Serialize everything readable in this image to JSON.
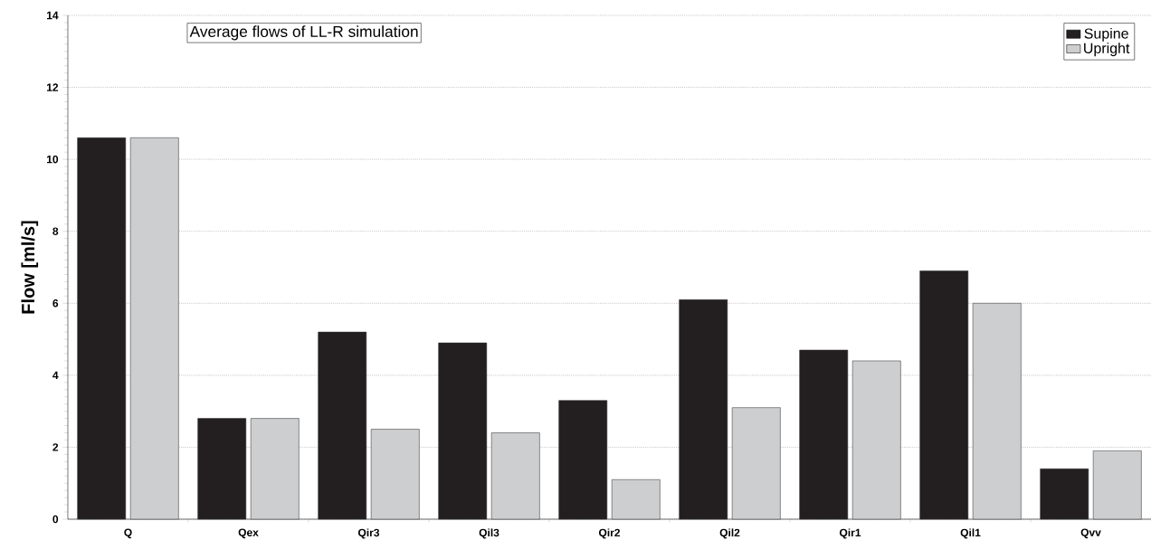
{
  "chart_data": {
    "type": "bar",
    "title": "Average flows of LL-R simulation",
    "ylabel": "Flow [ml/s]",
    "categories": [
      "Q",
      "Qex",
      "Qir3",
      "Qil3",
      "Qir2",
      "Qil2",
      "Qir1",
      "Qil1",
      "Qvv"
    ],
    "series": [
      {
        "name": "Supine",
        "color": "#231f20",
        "values": [
          10.6,
          2.8,
          5.2,
          4.9,
          3.3,
          6.1,
          4.7,
          6.9,
          1.4
        ]
      },
      {
        "name": "Upright",
        "color": "#cdced0",
        "values": [
          10.6,
          2.8,
          2.5,
          2.4,
          1.1,
          3.1,
          4.4,
          6.0,
          1.9
        ]
      }
    ],
    "ylim": [
      0,
      14
    ],
    "yticks": [
      0,
      2,
      4,
      6,
      8,
      10,
      12,
      14
    ],
    "grid": "y",
    "legend": "top right"
  }
}
